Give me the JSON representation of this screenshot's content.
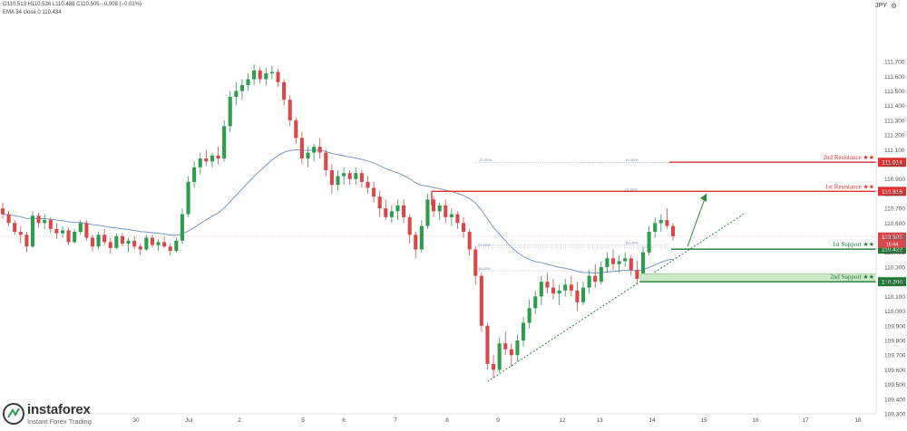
{
  "header": {
    "ohlc": "O110.513  H110.536  L110.488  C110.505  −0.008 (−0.01%)",
    "ema": "EMA 34 close 0  110.434",
    "symbol": "JPY",
    "settings_icon": "gear-icon"
  },
  "logo": {
    "name": "instaforex",
    "tagline": "Instant Forex Trading",
    "icon": "instaforex-logo-icon"
  },
  "colors": {
    "up": "#2e9c4e",
    "down": "#d8484b",
    "ema": "#6a8ec8",
    "resistance": "#e0302f",
    "support": "#1f7a35",
    "support_zone": "#cfe9c8",
    "trend": "#2a8a3d",
    "fib": "#7a8fb0"
  },
  "chart_data": {
    "type": "candlestick",
    "y_axis": {
      "range": [
        109.3,
        112.12
      ],
      "ticks": [
        "111.700",
        "111.600",
        "111.500",
        "111.400",
        "111.300",
        "111.200",
        "111.100",
        "111.000",
        "110.900",
        "110.800",
        "110.700",
        "110.600",
        "110.500",
        "110.400",
        "110.300",
        "110.200",
        "110.100",
        "110.000",
        "109.900",
        "109.800",
        "109.700",
        "109.600",
        "109.500",
        "109.400",
        "109.300"
      ]
    },
    "x_axis": {
      "ticks": [
        "30",
        "Jul",
        "2",
        "5",
        "6",
        "7",
        "8",
        "9",
        "12",
        "13",
        "14",
        "15",
        "16",
        "17",
        "18"
      ]
    },
    "levels": [
      {
        "label": "2nd Resistance ★★",
        "value": "111.014",
        "kind": "resistance"
      },
      {
        "label": "1st Resistance ★★",
        "value": "110.816",
        "kind": "resistance"
      },
      {
        "label": "1st Support ★★",
        "value": "110.422",
        "kind": "support"
      },
      {
        "label": "2nd Support ★★",
        "value": "110.200",
        "kind": "support"
      }
    ],
    "price_badges": [
      {
        "value": "110.505",
        "sub": "15:44"
      }
    ],
    "fib_labels": [
      "-27.20%",
      "61.80%",
      "-27.20%",
      "50.00%",
      "23.60%",
      "38.20%"
    ],
    "ema_label": "EMA 34",
    "candles": [
      [
        110.7,
        110.74,
        110.63,
        110.66
      ],
      [
        110.66,
        110.68,
        110.58,
        110.6
      ],
      [
        110.6,
        110.62,
        110.52,
        110.54
      ],
      [
        110.54,
        110.58,
        110.46,
        110.52
      ],
      [
        110.52,
        110.54,
        110.4,
        110.44
      ],
      [
        110.44,
        110.68,
        110.43,
        110.65
      ],
      [
        110.65,
        110.67,
        110.57,
        110.6
      ],
      [
        110.6,
        110.66,
        110.56,
        110.62
      ],
      [
        110.62,
        110.64,
        110.53,
        110.56
      ],
      [
        110.56,
        110.6,
        110.49,
        110.53
      ],
      [
        110.53,
        110.58,
        110.5,
        110.55
      ],
      [
        110.55,
        110.57,
        110.45,
        110.47
      ],
      [
        110.47,
        110.56,
        110.46,
        110.54
      ],
      [
        110.54,
        110.62,
        110.52,
        110.6
      ],
      [
        110.6,
        110.62,
        110.48,
        110.5
      ],
      [
        110.5,
        110.52,
        110.41,
        110.44
      ],
      [
        110.44,
        110.54,
        110.42,
        110.52
      ],
      [
        110.52,
        110.56,
        110.45,
        110.47
      ],
      [
        110.47,
        110.5,
        110.39,
        110.43
      ],
      [
        110.43,
        110.53,
        110.42,
        110.51
      ],
      [
        110.51,
        110.53,
        110.44,
        110.46
      ],
      [
        110.46,
        110.5,
        110.4,
        110.48
      ],
      [
        110.48,
        110.51,
        110.42,
        110.44
      ],
      [
        110.44,
        110.46,
        110.38,
        110.42
      ],
      [
        110.42,
        110.52,
        110.41,
        110.5
      ],
      [
        110.5,
        110.52,
        110.43,
        110.45
      ],
      [
        110.45,
        110.49,
        110.41,
        110.47
      ],
      [
        110.47,
        110.51,
        110.43,
        110.44
      ],
      [
        110.44,
        110.46,
        110.38,
        110.41
      ],
      [
        110.41,
        110.5,
        110.4,
        110.48
      ],
      [
        110.48,
        110.7,
        110.46,
        110.66
      ],
      [
        110.66,
        110.92,
        110.64,
        110.88
      ],
      [
        110.88,
        111.02,
        110.84,
        110.98
      ],
      [
        110.98,
        111.08,
        110.93,
        111.04
      ],
      [
        111.04,
        111.1,
        110.99,
        111.02
      ],
      [
        111.02,
        111.08,
        110.98,
        111.06
      ],
      [
        111.06,
        111.12,
        111.0,
        111.04
      ],
      [
        111.04,
        111.3,
        111.02,
        111.26
      ],
      [
        111.26,
        111.5,
        111.22,
        111.46
      ],
      [
        111.46,
        111.56,
        111.4,
        111.5
      ],
      [
        111.5,
        111.58,
        111.44,
        111.54
      ],
      [
        111.54,
        111.62,
        111.5,
        111.58
      ],
      [
        111.58,
        111.68,
        111.54,
        111.64
      ],
      [
        111.64,
        111.66,
        111.55,
        111.58
      ],
      [
        111.58,
        111.66,
        111.54,
        111.62
      ],
      [
        111.62,
        111.67,
        111.58,
        111.63
      ],
      [
        111.63,
        111.65,
        111.53,
        111.56
      ],
      [
        111.56,
        111.58,
        111.4,
        111.44
      ],
      [
        111.44,
        111.47,
        111.26,
        111.3
      ],
      [
        111.3,
        111.32,
        111.14,
        111.18
      ],
      [
        111.18,
        111.22,
        111.0,
        111.04
      ],
      [
        111.04,
        111.12,
        110.98,
        111.08
      ],
      [
        111.08,
        111.14,
        111.02,
        111.12
      ],
      [
        111.12,
        111.18,
        111.04,
        111.08
      ],
      [
        111.08,
        111.1,
        110.92,
        110.96
      ],
      [
        110.96,
        111.0,
        110.8,
        110.86
      ],
      [
        110.86,
        110.96,
        110.82,
        110.92
      ],
      [
        110.92,
        110.98,
        110.86,
        110.94
      ],
      [
        110.94,
        110.96,
        110.86,
        110.9
      ],
      [
        110.9,
        110.98,
        110.86,
        110.94
      ],
      [
        110.94,
        110.96,
        110.84,
        110.88
      ],
      [
        110.88,
        110.92,
        110.8,
        110.84
      ],
      [
        110.84,
        110.88,
        110.74,
        110.78
      ],
      [
        110.78,
        110.82,
        110.64,
        110.7
      ],
      [
        110.7,
        110.76,
        110.62,
        110.64
      ],
      [
        110.64,
        110.72,
        110.6,
        110.68
      ],
      [
        110.68,
        110.76,
        110.62,
        110.72
      ],
      [
        110.72,
        110.76,
        110.6,
        110.64
      ],
      [
        110.64,
        110.66,
        110.46,
        110.52
      ],
      [
        110.52,
        110.54,
        110.36,
        110.42
      ],
      [
        110.42,
        110.62,
        110.4,
        110.58
      ],
      [
        110.58,
        110.8,
        110.56,
        110.76
      ],
      [
        110.76,
        110.78,
        110.64,
        110.68
      ],
      [
        110.68,
        110.74,
        110.62,
        110.72
      ],
      [
        110.72,
        110.76,
        110.6,
        110.64
      ],
      [
        110.64,
        110.7,
        110.58,
        110.66
      ],
      [
        110.66,
        110.68,
        110.56,
        110.6
      ],
      [
        110.6,
        110.64,
        110.5,
        110.54
      ],
      [
        110.54,
        110.56,
        110.38,
        110.42
      ],
      [
        110.42,
        110.44,
        110.18,
        110.24
      ],
      [
        110.24,
        110.26,
        109.86,
        109.9
      ],
      [
        109.9,
        109.92,
        109.6,
        109.64
      ],
      [
        109.64,
        109.7,
        109.54,
        109.6
      ],
      [
        109.6,
        109.82,
        109.58,
        109.78
      ],
      [
        109.78,
        109.86,
        109.7,
        109.74
      ],
      [
        109.74,
        109.78,
        109.62,
        109.7
      ],
      [
        109.7,
        109.84,
        109.66,
        109.8
      ],
      [
        109.8,
        109.96,
        109.76,
        109.92
      ],
      [
        109.92,
        110.08,
        109.88,
        110.02
      ],
      [
        110.02,
        110.14,
        109.98,
        110.1
      ],
      [
        110.1,
        110.24,
        110.04,
        110.2
      ],
      [
        110.2,
        110.26,
        110.12,
        110.16
      ],
      [
        110.16,
        110.22,
        110.08,
        110.12
      ],
      [
        110.12,
        110.18,
        110.04,
        110.14
      ],
      [
        110.14,
        110.22,
        110.1,
        110.18
      ],
      [
        110.18,
        110.24,
        110.1,
        110.14
      ],
      [
        110.14,
        110.2,
        110.0,
        110.06
      ],
      [
        110.06,
        110.2,
        110.04,
        110.16
      ],
      [
        110.16,
        110.28,
        110.12,
        110.24
      ],
      [
        110.24,
        110.32,
        110.16,
        110.2
      ],
      [
        110.2,
        110.34,
        110.18,
        110.3
      ],
      [
        110.3,
        110.4,
        110.26,
        110.36
      ],
      [
        110.36,
        110.42,
        110.28,
        110.32
      ],
      [
        110.32,
        110.38,
        110.26,
        110.34
      ],
      [
        110.34,
        110.4,
        110.3,
        110.36
      ],
      [
        110.36,
        110.38,
        110.24,
        110.28
      ],
      [
        110.28,
        110.34,
        110.18,
        110.22
      ],
      [
        110.22,
        110.44,
        110.2,
        110.4
      ],
      [
        110.4,
        110.58,
        110.38,
        110.54
      ],
      [
        110.54,
        110.64,
        110.5,
        110.6
      ],
      [
        110.6,
        110.66,
        110.54,
        110.62
      ],
      [
        110.62,
        110.7,
        110.56,
        110.58
      ],
      [
        110.58,
        110.6,
        110.48,
        110.51
      ]
    ]
  }
}
